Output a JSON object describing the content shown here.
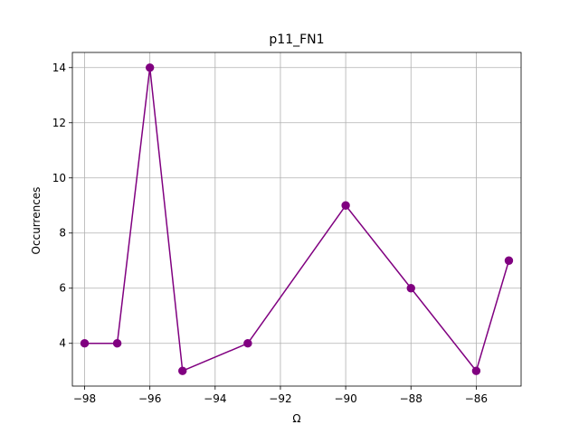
{
  "chart_data": {
    "type": "line",
    "title": "p11_FN1",
    "xlabel": "Ω",
    "ylabel": "Occurrences",
    "x": [
      -98,
      -97,
      -96,
      -95,
      -93,
      -90,
      -88,
      -86,
      -85
    ],
    "series": [
      {
        "values": [
          4,
          4,
          14,
          3,
          4,
          9,
          6,
          3,
          7
        ]
      }
    ],
    "xlim": [
      -98.375,
      -84.625
    ],
    "ylim": [
      2.45,
      14.55
    ],
    "xticks": [
      -98,
      -96,
      -94,
      -92,
      -90,
      -88,
      -86
    ],
    "yticks": [
      4,
      6,
      8,
      10,
      12,
      14
    ],
    "grid": true,
    "legend": false,
    "color": "#800080",
    "marker": "circle"
  }
}
